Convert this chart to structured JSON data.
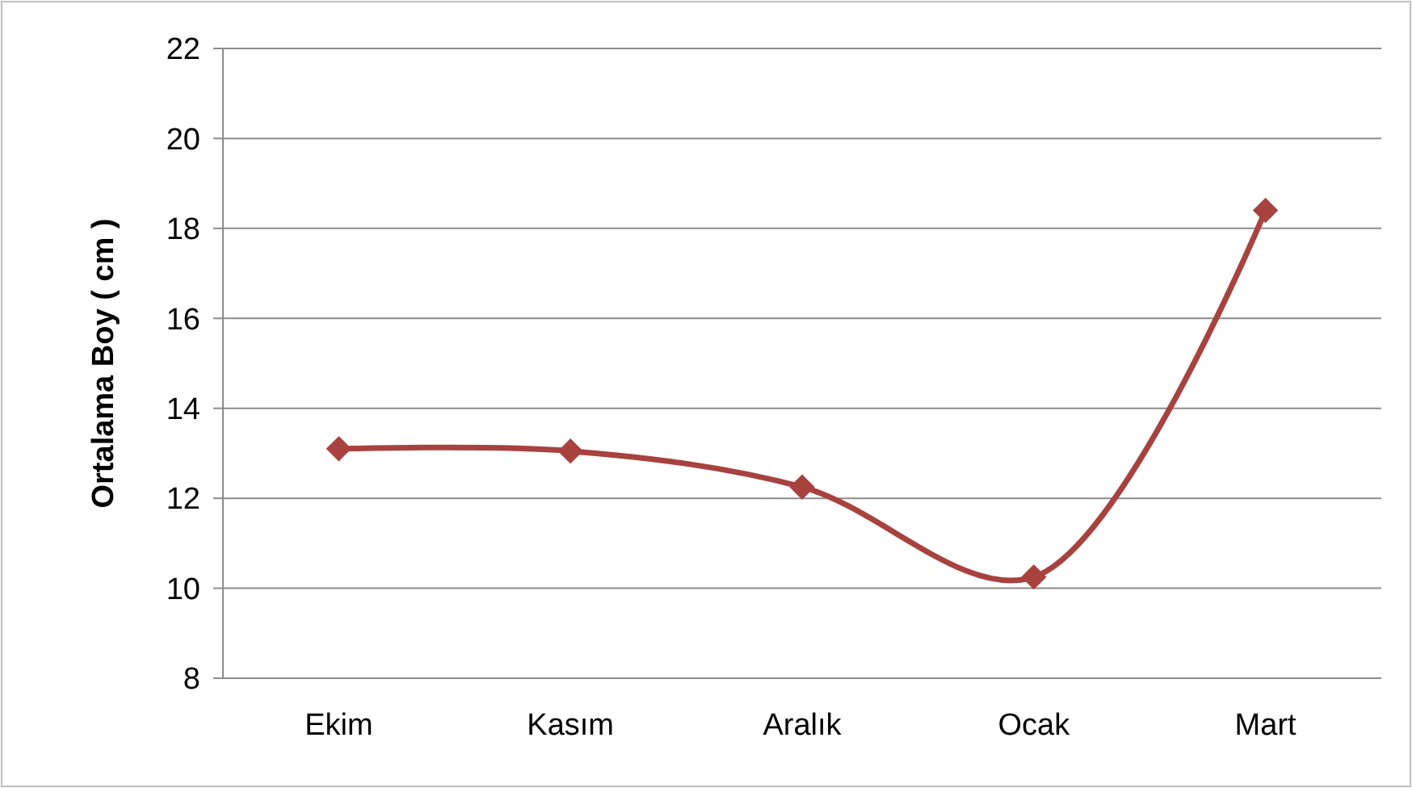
{
  "chart_data": {
    "type": "line",
    "ylabel": "Ortalama Boy ( cm )",
    "categories": [
      "Ekim",
      "Kasım",
      "Aralık",
      "Ocak",
      "Mart"
    ],
    "series": [
      {
        "color": "#a8423f",
        "values": [
          13.1,
          13.05,
          12.25,
          10.25,
          18.4
        ]
      }
    ],
    "ylim": [
      8,
      22
    ],
    "yticks": [
      8,
      10,
      12,
      14,
      16,
      18,
      20,
      22
    ],
    "grid": "y",
    "marker": "diamond",
    "line_style": "solid"
  }
}
